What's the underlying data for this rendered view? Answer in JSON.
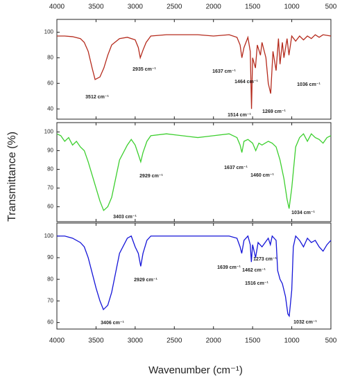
{
  "ylabel": "Transmittance (%)",
  "chart_data": [
    {
      "type": "line",
      "color": "#b52a1c",
      "x": [
        4000,
        3900,
        3800,
        3700,
        3650,
        3600,
        3550,
        3512,
        3450,
        3400,
        3350,
        3300,
        3200,
        3100,
        3000,
        2960,
        2935,
        2900,
        2860,
        2800,
        2600,
        2400,
        2200,
        2000,
        1800,
        1700,
        1660,
        1637,
        1610,
        1560,
        1530,
        1514,
        1500,
        1464,
        1440,
        1400,
        1380,
        1330,
        1300,
        1269,
        1240,
        1200,
        1170,
        1150,
        1120,
        1100,
        1060,
        1036,
        1000,
        950,
        900,
        850,
        800,
        750,
        700,
        650,
        600,
        500
      ],
      "values": [
        97,
        97,
        96.5,
        95,
        92,
        85,
        72,
        63,
        65,
        72,
        82,
        90,
        95,
        96,
        94,
        88,
        80,
        86,
        92,
        97,
        98,
        98,
        98,
        97,
        98,
        96,
        90,
        80,
        88,
        96,
        85,
        40,
        80,
        72,
        90,
        82,
        92,
        80,
        60,
        52,
        85,
        70,
        95,
        75,
        92,
        80,
        95,
        82,
        97,
        93,
        97,
        94,
        97,
        95,
        98,
        96,
        98,
        97
      ],
      "xlim": [
        4000,
        500
      ],
      "xticks": [
        4000,
        3500,
        3000,
        2500,
        2000,
        1500,
        1000,
        500
      ],
      "ylim": [
        32,
        110
      ],
      "yticks": [
        40,
        60,
        80,
        100
      ],
      "annotations": [
        "2935 cm⁻¹",
        "3512 cm⁻¹",
        "1637 cm⁻¹",
        "1464 cm⁻¹",
        "1514 cm⁻¹",
        "1269 cm⁻¹",
        "1036 cm⁻¹"
      ]
    },
    {
      "type": "line",
      "color": "#3ccf2e",
      "x": [
        4000,
        3950,
        3900,
        3850,
        3800,
        3750,
        3700,
        3650,
        3600,
        3550,
        3500,
        3450,
        3403,
        3350,
        3300,
        3250,
        3200,
        3100,
        3050,
        3000,
        2960,
        2929,
        2900,
        2850,
        2800,
        2600,
        2400,
        2300,
        2200,
        2100,
        2000,
        1800,
        1700,
        1660,
        1637,
        1610,
        1560,
        1500,
        1460,
        1420,
        1380,
        1300,
        1250,
        1200,
        1150,
        1100,
        1060,
        1034,
        1000,
        950,
        900,
        850,
        800,
        750,
        700,
        650,
        600,
        550,
        500
      ],
      "values": [
        99,
        98,
        95,
        97,
        93,
        95,
        92,
        90,
        84,
        77,
        70,
        63,
        58,
        60,
        65,
        75,
        85,
        93,
        96,
        93,
        88,
        84,
        89,
        95,
        98,
        99,
        98,
        97.5,
        97,
        97.5,
        98,
        99,
        97,
        93,
        89,
        95,
        96,
        94,
        90,
        94,
        93,
        95,
        94,
        92,
        85,
        75,
        64,
        59,
        70,
        92,
        97,
        99,
        95,
        99,
        97,
        96,
        94,
        97,
        98
      ],
      "xlim": [
        4000,
        500
      ],
      "ylim": [
        52,
        105
      ],
      "yticks": [
        60,
        70,
        80,
        90,
        100
      ],
      "annotations": [
        "3403 cm⁻¹",
        "2929 cm⁻¹",
        "1637 cm⁻¹",
        "1460 cm⁻¹",
        "1034 cm⁻¹"
      ]
    },
    {
      "type": "line",
      "color": "#1414d8",
      "x": [
        4000,
        3900,
        3800,
        3700,
        3650,
        3600,
        3550,
        3500,
        3450,
        3406,
        3350,
        3300,
        3250,
        3200,
        3100,
        3050,
        3000,
        2960,
        2929,
        2900,
        2850,
        2800,
        2400,
        2000,
        1800,
        1700,
        1660,
        1639,
        1610,
        1560,
        1530,
        1516,
        1500,
        1462,
        1430,
        1380,
        1300,
        1273,
        1250,
        1200,
        1180,
        1150,
        1120,
        1080,
        1050,
        1032,
        1000,
        980,
        950,
        900,
        850,
        800,
        750,
        700,
        650,
        600,
        550,
        500
      ],
      "values": [
        100,
        100,
        99,
        97,
        95,
        90,
        83,
        76,
        70,
        66,
        68,
        74,
        83,
        92,
        99,
        100,
        95,
        92,
        86,
        92,
        98,
        100,
        100,
        100,
        100,
        99,
        95,
        92,
        98,
        100,
        96,
        88,
        96,
        90,
        97,
        95,
        99,
        96,
        100,
        98,
        84,
        80,
        78,
        72,
        64,
        63,
        75,
        95,
        100,
        98,
        95,
        99,
        97,
        98,
        95,
        93,
        96,
        98
      ],
      "xlim": [
        4000,
        500
      ],
      "xticks": [
        4000,
        3500,
        3000,
        2500,
        2000,
        1500,
        1000,
        500
      ],
      "ylim": [
        57,
        106
      ],
      "yticks": [
        60,
        70,
        80,
        90,
        100
      ],
      "xlabel": "Wavenumber (cm⁻¹)",
      "annotations": [
        "3406 cm⁻¹",
        "2929 cm⁻¹",
        "1639 cm⁻¹",
        "1462 cm⁻¹",
        "1516 cm⁻¹",
        "1273 cm⁻¹",
        "1032 cm⁻¹"
      ]
    }
  ]
}
